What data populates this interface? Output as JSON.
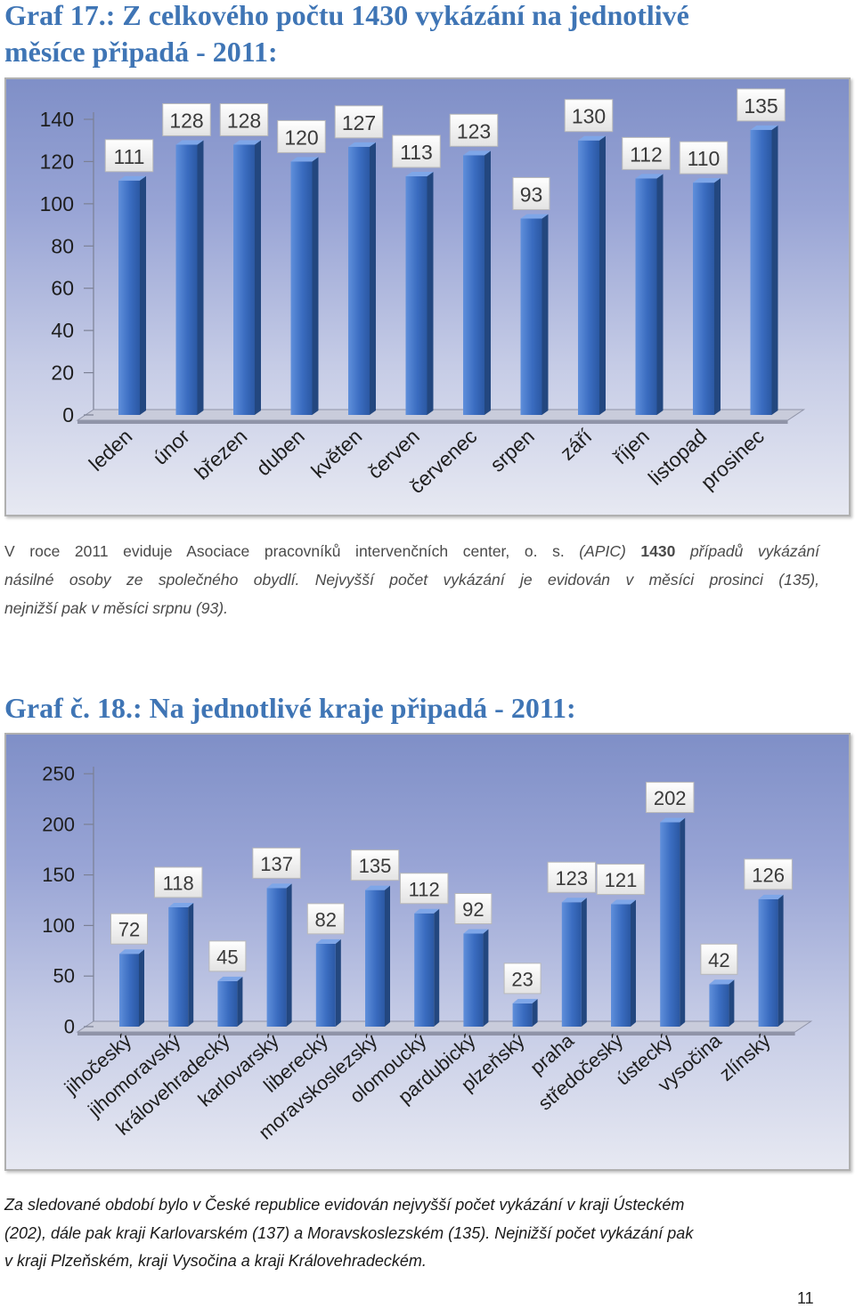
{
  "heading1": {
    "line1": "Graf 17.: Z celkového počtu 1430 vykázání na jednotlivé",
    "line2": "měsíce připadá - 2011:"
  },
  "paragraph1": {
    "line1_upright": "V roce 2011 eviduje Asociace pracovníků intervenčních center, o. s.",
    "line1_italic_a": "(APIC)",
    "line1_bold": "1430",
    "line1_italic_b": "případů vykázání",
    "line2": "násilné osoby ze společného obydlí. Nejvyšší počet vykázání je evidován v měsíci prosinci (135),",
    "line3": "nejnižší pak v měsíci srpnu (93)."
  },
  "heading2": "Graf č. 18.: Na jednotlivé kraje připadá - 2011:",
  "paragraph2": {
    "line1": "Za sledované období bylo v České republice evidován nejvyšší počet vykázání v kraji Ústeckém",
    "line2": "(202), dále pak kraji Karlovarském (137) a Moravskoslezském (135). Nejnižší počet vykázání pak",
    "line3": "v kraji Plzeňském, kraji Vysočina a kraji Královehradeckém."
  },
  "page_number": "11",
  "colors": {
    "heading": "#3f75b5",
    "paragraph1_text": "#4a4a4a",
    "paragraph2_text": "#1a1a1a",
    "bar": "#3a6cc0",
    "bar_light": "#5f8fdb",
    "bar_dark": "#2b58a3",
    "bar_side": "#23477f",
    "bar_top": "#7ea6e8",
    "floor": "#c9ccdb",
    "floor_edge": "#9094a8",
    "axis": "#7b8094",
    "axis_text": "#1e1e1e",
    "label_box": "#e3e3e3",
    "label_border": "#b9b9b9",
    "label_text": "#3a3a3a",
    "chart_bg_top": "#7f8fc7",
    "chart_bg_bottom": "#e7e9f2"
  },
  "chart_data": [
    {
      "type": "bar",
      "style": "3d-column",
      "categories": [
        "leden",
        "únor",
        "březen",
        "duben",
        "květen",
        "červen",
        "červenec",
        "srpen",
        "září",
        "říjen",
        "listopad",
        "prosinec"
      ],
      "values": [
        111,
        128,
        128,
        120,
        127,
        113,
        123,
        93,
        130,
        112,
        110,
        135
      ],
      "ylim": [
        0,
        140
      ],
      "yticks": [
        0,
        20,
        40,
        60,
        80,
        100,
        120,
        140
      ],
      "data_labels": true,
      "grid": false,
      "legend": "none"
    },
    {
      "type": "bar",
      "style": "3d-column",
      "categories": [
        "jihočeský",
        "jihomoravský",
        "královehradecký",
        "karlovarský",
        "liberecký",
        "moravskoslezský",
        "olomoucký",
        "pardubický",
        "plzeňský",
        "praha",
        "středočeský",
        "ústecký",
        "vysočina",
        "zlínský"
      ],
      "values": [
        72,
        118,
        45,
        137,
        82,
        135,
        112,
        92,
        23,
        123,
        121,
        202,
        42,
        126
      ],
      "ylim": [
        0,
        250
      ],
      "yticks": [
        0,
        50,
        100,
        150,
        200,
        250
      ],
      "data_labels": true,
      "grid": false,
      "legend": "none"
    }
  ]
}
